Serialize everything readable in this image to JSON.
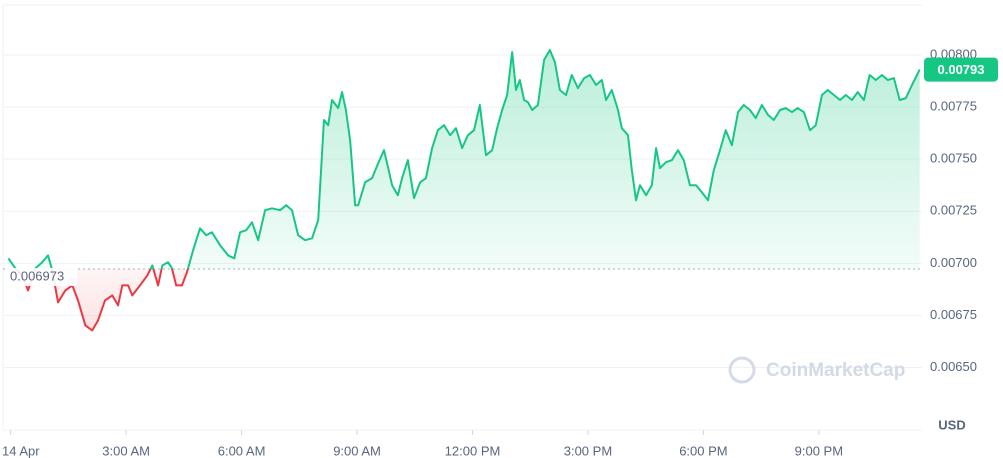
{
  "chart_data": {
    "type": "line",
    "x": [
      -0.06,
      0.12,
      0.3,
      0.45,
      0.64,
      0.82,
      0.97,
      1.08,
      1.23,
      1.42,
      1.6,
      1.75,
      1.94,
      2.12,
      2.27,
      2.45,
      2.64,
      2.79,
      2.9,
      3.05,
      3.16,
      3.36,
      3.55,
      3.68,
      3.83,
      3.94,
      4.09,
      4.19,
      4.3,
      4.45,
      4.58,
      4.74,
      4.92,
      5.08,
      5.23,
      5.44,
      5.65,
      5.81,
      5.96,
      6.12,
      6.27,
      6.43,
      6.61,
      6.79,
      7.0,
      7.16,
      7.31,
      7.47,
      7.65,
      7.83,
      7.99,
      8.14,
      8.25,
      8.35,
      8.51,
      8.61,
      8.71,
      8.82,
      8.95,
      9.03,
      9.21,
      9.39,
      9.55,
      9.7,
      9.81,
      9.91,
      10.06,
      10.17,
      10.32,
      10.48,
      10.64,
      10.79,
      10.95,
      11.1,
      11.26,
      11.42,
      11.57,
      11.73,
      11.88,
      12.04,
      12.19,
      12.35,
      12.51,
      12.64,
      12.77,
      12.9,
      13.03,
      13.13,
      13.23,
      13.34,
      13.44,
      13.55,
      13.7,
      13.86,
      14.01,
      14.14,
      14.27,
      14.43,
      14.58,
      14.74,
      14.9,
      15.05,
      15.21,
      15.36,
      15.47,
      15.62,
      15.78,
      15.88,
      16.04,
      16.14,
      16.25,
      16.35,
      16.51,
      16.66,
      16.77,
      16.87,
      17.03,
      17.18,
      17.34,
      17.49,
      17.65,
      17.81,
      17.96,
      18.12,
      18.27,
      18.43,
      18.58,
      18.74,
      18.9,
      19.05,
      19.21,
      19.36,
      19.52,
      19.68,
      19.83,
      19.99,
      20.14,
      20.3,
      20.45,
      20.61,
      20.77,
      20.92,
      21.08,
      21.23,
      21.39,
      21.55,
      21.7,
      21.86,
      22.01,
      22.17,
      22.32,
      22.48,
      22.64,
      22.79,
      22.95,
      23.1,
      23.26,
      23.42,
      23.62
    ],
    "values": [
      0.007024,
      0.006976,
      0.006942,
      0.00687,
      0.006976,
      0.007005,
      0.007038,
      0.006966,
      0.006813,
      0.00687,
      0.006894,
      0.006822,
      0.006702,
      0.006678,
      0.006726,
      0.006822,
      0.006846,
      0.006798,
      0.006894,
      0.006894,
      0.006846,
      0.006894,
      0.006942,
      0.00699,
      0.006894,
      0.00699,
      0.007005,
      0.006976,
      0.006894,
      0.006894,
      0.006957,
      0.007063,
      0.007168,
      0.007135,
      0.007149,
      0.007087,
      0.007038,
      0.007024,
      0.007149,
      0.007159,
      0.007197,
      0.007111,
      0.007255,
      0.007264,
      0.007255,
      0.007279,
      0.007255,
      0.007135,
      0.007111,
      0.00712,
      0.007207,
      0.007688,
      0.007663,
      0.007784,
      0.007745,
      0.007822,
      0.007736,
      0.007591,
      0.007279,
      0.007279,
      0.007389,
      0.007409,
      0.007481,
      0.007543,
      0.007457,
      0.007375,
      0.007327,
      0.007409,
      0.007495,
      0.007313,
      0.007389,
      0.007409,
      0.007553,
      0.007639,
      0.007663,
      0.007615,
      0.007649,
      0.007553,
      0.007615,
      0.007639,
      0.00776,
      0.007519,
      0.007543,
      0.007649,
      0.007736,
      0.007808,
      0.008014,
      0.007832,
      0.00788,
      0.007784,
      0.007774,
      0.007736,
      0.00776,
      0.007976,
      0.008024,
      0.007966,
      0.007832,
      0.007808,
      0.007904,
      0.007841,
      0.007889,
      0.007904,
      0.007856,
      0.00788,
      0.007784,
      0.007832,
      0.007736,
      0.007649,
      0.007615,
      0.007447,
      0.007303,
      0.007375,
      0.007327,
      0.007375,
      0.007553,
      0.007457,
      0.007486,
      0.007495,
      0.007543,
      0.007495,
      0.007375,
      0.007375,
      0.007341,
      0.007303,
      0.007447,
      0.007543,
      0.007639,
      0.007567,
      0.007726,
      0.00776,
      0.007736,
      0.007697,
      0.00776,
      0.007712,
      0.007688,
      0.007736,
      0.007745,
      0.007726,
      0.007745,
      0.007726,
      0.007639,
      0.007663,
      0.007808,
      0.007832,
      0.007808,
      0.007784,
      0.007808,
      0.007784,
      0.007822,
      0.007784,
      0.007904,
      0.00788,
      0.007904,
      0.00788,
      0.007889,
      0.007784,
      0.007793,
      0.007856,
      0.00793
    ],
    "color": "#16c784",
    "below_color": "#ea3943",
    "reference": 0.006973,
    "xlim": [
      -0.2,
      23.68
    ],
    "ylim": [
      0.0062,
      0.00824
    ],
    "xticks": [
      {
        "value": 0,
        "label": "14 Apr"
      },
      {
        "value": 3,
        "label": "3:00 AM"
      },
      {
        "value": 6,
        "label": "6:00 AM"
      },
      {
        "value": 9,
        "label": "9:00 AM"
      },
      {
        "value": 12,
        "label": "12:00 PM"
      },
      {
        "value": 15,
        "label": "3:00 PM"
      },
      {
        "value": 18,
        "label": "6:00 PM"
      },
      {
        "value": 21,
        "label": "9:00 PM"
      }
    ],
    "yticks": [
      {
        "value": 0.0065,
        "label": "0.00650"
      },
      {
        "value": 0.00675,
        "label": "0.00675"
      },
      {
        "value": 0.007,
        "label": "0.00700"
      },
      {
        "value": 0.00725,
        "label": "0.00725"
      },
      {
        "value": 0.0075,
        "label": "0.00750"
      },
      {
        "value": 0.00775,
        "label": "0.00775"
      },
      {
        "value": 0.008,
        "label": "0.00800"
      }
    ],
    "grid": true,
    "y_unit": "USD",
    "watermark": "CoinMarketCap"
  }
}
